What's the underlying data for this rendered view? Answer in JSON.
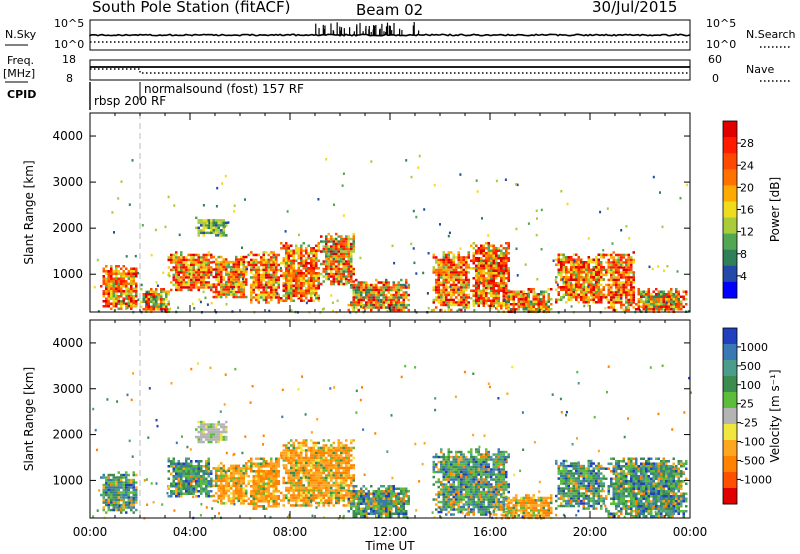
{
  "header": {
    "station": "South Pole Station (fitACF)",
    "beam": "Beam 02",
    "date": "30/Jul/2015"
  },
  "strip": {
    "nsky_label": "N.Sky",
    "nsky_ticks": [
      "10^5",
      "10^0"
    ],
    "nsearch_label": "N.Search",
    "nsearch_ticks": [
      "10^5",
      "10^0"
    ],
    "freq_label": "Freq.",
    "freq_unit": "[MHz]",
    "freq_ticks": [
      "18",
      "8"
    ],
    "nave_label": "Nave",
    "nave_ticks": [
      "60",
      "0"
    ],
    "cpid_label": "CPID",
    "cpid_mode1": "rbsp 200 RF",
    "cpid_mode2": "normalsound (fost) 157 RF"
  },
  "chart_data": [
    {
      "type": "heatmap",
      "panel": "power",
      "xlabel": "Time UT",
      "ylabel": "Slant Range [km]",
      "x_ticks": [
        "00:00",
        "04:00",
        "08:00",
        "12:00",
        "16:00",
        "20:00",
        "00:00"
      ],
      "x_range_hours": [
        0,
        24
      ],
      "y_ticks": [
        1000,
        2000,
        3000,
        4000
      ],
      "ylim": [
        180,
        4500
      ],
      "colorbar": {
        "label": "Power [dB]",
        "ticks": [
          "4",
          "8",
          "12",
          "16",
          "20",
          "24",
          "28"
        ],
        "colors": [
          "#0000ff",
          "#2448a8",
          "#2f7f58",
          "#52a852",
          "#a8cc3c",
          "#f0dc1e",
          "#ffaa00",
          "#ff7200",
          "#ff4800",
          "#ff1a00",
          "#e00000"
        ]
      },
      "echo_regions": [
        {
          "t": [
            0.4,
            1.9
          ],
          "r": [
            250,
            1200
          ],
          "level": "high"
        },
        {
          "t": [
            2.0,
            3.2
          ],
          "r": [
            200,
            700
          ],
          "level": "mid"
        },
        {
          "t": [
            3.1,
            4.9
          ],
          "r": [
            650,
            1500
          ],
          "level": "high"
        },
        {
          "t": [
            4.2,
            5.5
          ],
          "r": [
            1850,
            2250
          ],
          "level": "low"
        },
        {
          "t": [
            4.9,
            6.3
          ],
          "r": [
            500,
            1400
          ],
          "level": "high"
        },
        {
          "t": [
            6.3,
            7.6
          ],
          "r": [
            400,
            1500
          ],
          "level": "high"
        },
        {
          "t": [
            7.6,
            9.2
          ],
          "r": [
            450,
            1700
          ],
          "level": "high"
        },
        {
          "t": [
            9.2,
            10.6
          ],
          "r": [
            800,
            1900
          ],
          "level": "mid"
        },
        {
          "t": [
            10.3,
            12.8
          ],
          "r": [
            200,
            900
          ],
          "level": "mid"
        },
        {
          "t": [
            13.7,
            15.2
          ],
          "r": [
            250,
            1500
          ],
          "level": "high"
        },
        {
          "t": [
            15.2,
            16.8
          ],
          "r": [
            250,
            1700
          ],
          "level": "high"
        },
        {
          "t": [
            16.5,
            18.5
          ],
          "r": [
            200,
            700
          ],
          "level": "mid"
        },
        {
          "t": [
            18.6,
            20.6
          ],
          "r": [
            400,
            1450
          ],
          "level": "high"
        },
        {
          "t": [
            20.6,
            21.8
          ],
          "r": [
            250,
            1500
          ],
          "level": "high"
        },
        {
          "t": [
            21.8,
            23.9
          ],
          "r": [
            200,
            700
          ],
          "level": "mid"
        }
      ]
    },
    {
      "type": "heatmap",
      "panel": "velocity",
      "xlabel": "Time UT",
      "ylabel": "Slant Range [km]",
      "x_ticks": [
        "00:00",
        "04:00",
        "08:00",
        "12:00",
        "16:00",
        "20:00",
        "00:00"
      ],
      "x_range_hours": [
        0,
        24
      ],
      "y_ticks": [
        1000,
        2000,
        3000,
        4000
      ],
      "ylim": [
        180,
        4500
      ],
      "colorbar": {
        "label": "Velocity [m s⁻¹]",
        "ticks": [
          "1000",
          "500",
          "100",
          "25",
          "-25",
          "-100",
          "-500",
          "-1000"
        ],
        "colors": [
          "#2040c0",
          "#3a78b4",
          "#4c9c8c",
          "#3c8c50",
          "#5cbc3c",
          "#b4b4b4",
          "#f0e640",
          "#ffa620",
          "#ff8200",
          "#ff5000",
          "#e00000"
        ]
      },
      "echo_regions": [
        {
          "t": [
            0.4,
            1.9
          ],
          "r": [
            300,
            1200
          ],
          "sign": "toward"
        },
        {
          "t": [
            3.1,
            4.9
          ],
          "r": [
            650,
            1500
          ],
          "sign": "toward"
        },
        {
          "t": [
            4.2,
            5.5
          ],
          "r": [
            1850,
            2300
          ],
          "sign": "low"
        },
        {
          "t": [
            4.9,
            6.3
          ],
          "r": [
            500,
            1400
          ],
          "sign": "away"
        },
        {
          "t": [
            6.3,
            7.6
          ],
          "r": [
            400,
            1500
          ],
          "sign": "away"
        },
        {
          "t": [
            7.6,
            10.6
          ],
          "r": [
            450,
            1900
          ],
          "sign": "away"
        },
        {
          "t": [
            10.3,
            12.8
          ],
          "r": [
            200,
            900
          ],
          "sign": "toward"
        },
        {
          "t": [
            13.7,
            16.8
          ],
          "r": [
            250,
            1700
          ],
          "sign": "toward"
        },
        {
          "t": [
            16.5,
            18.5
          ],
          "r": [
            200,
            700
          ],
          "sign": "away"
        },
        {
          "t": [
            18.6,
            20.6
          ],
          "r": [
            400,
            1450
          ],
          "sign": "toward"
        },
        {
          "t": [
            20.6,
            23.9
          ],
          "r": [
            200,
            1500
          ],
          "sign": "toward"
        }
      ]
    }
  ]
}
